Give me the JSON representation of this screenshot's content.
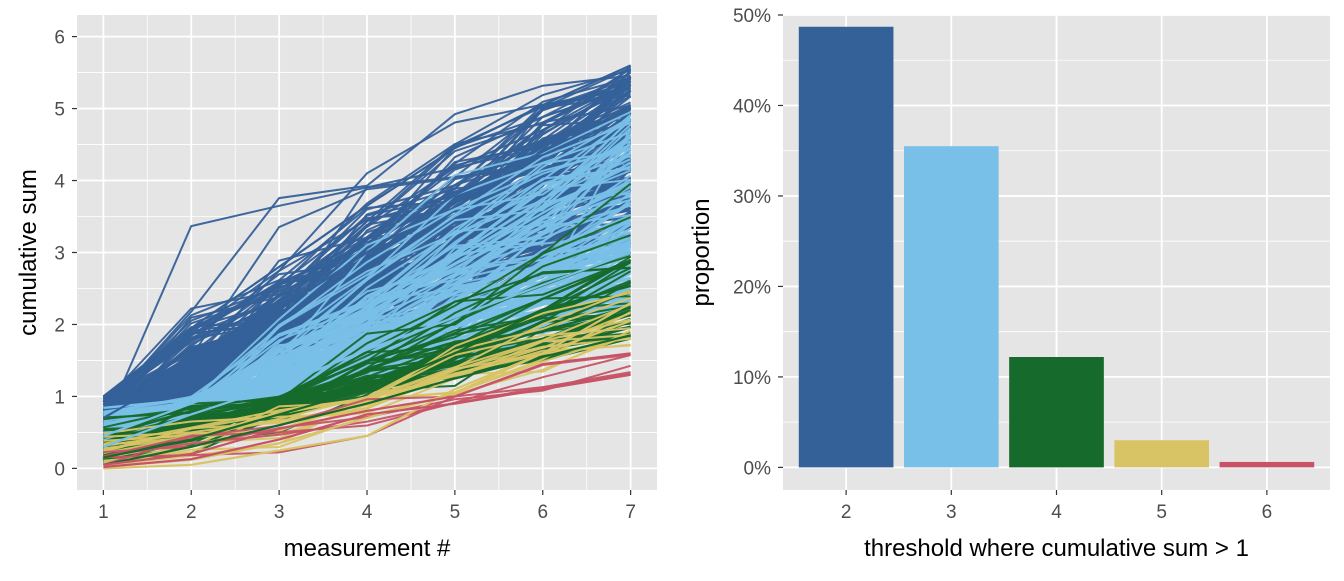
{
  "colors": {
    "panel_bg": "#e5e5e5",
    "grid": "#ffffff",
    "threshold_2": "#356199",
    "threshold_3": "#79c0e8",
    "threshold_4": "#166a2b",
    "threshold_5": "#d8c465",
    "threshold_6": "#c65466"
  },
  "chart_data": [
    {
      "type": "line",
      "xlabel": "measurement #",
      "ylabel": "cumulative sum",
      "x": [
        1,
        2,
        3,
        4,
        5,
        6,
        7
      ],
      "xlim": [
        0.7,
        7.3
      ],
      "ylim": [
        -0.3,
        6.3
      ],
      "x_ticks": [
        "1",
        "2",
        "3",
        "4",
        "5",
        "6",
        "7"
      ],
      "y_ticks": [
        "0",
        "1",
        "2",
        "3",
        "4",
        "5",
        "6"
      ],
      "grid": true,
      "legend": "none",
      "series_groups": [
        {
          "threshold": 2,
          "color": "#356199",
          "line_count": 200,
          "value_at_7_range": [
            3.0,
            5.6
          ]
        },
        {
          "threshold": 3,
          "color": "#79c0e8",
          "line_count": 150,
          "value_at_7_range": [
            2.2,
            5.0
          ]
        },
        {
          "threshold": 4,
          "color": "#166a2b",
          "line_count": 55,
          "value_at_7_range": [
            1.8,
            4.2
          ]
        },
        {
          "threshold": 5,
          "color": "#d8c465",
          "line_count": 16,
          "value_at_7_range": [
            1.7,
            2.6
          ]
        },
        {
          "threshold": 6,
          "color": "#c65466",
          "line_count": 5,
          "value_at_7_range": [
            1.3,
            1.6
          ]
        }
      ],
      "example_series": [
        {
          "threshold": 2,
          "values": [
            1.0,
            1.95,
            2.8,
            3.65,
            4.45,
            5.05,
            5.6
          ]
        },
        {
          "threshold": 2,
          "values": [
            0.7,
            1.4,
            2.2,
            3.0,
            3.8,
            4.4,
            5.0
          ]
        },
        {
          "threshold": 3,
          "values": [
            0.45,
            0.9,
            1.35,
            2.15,
            2.85,
            3.55,
            4.25
          ]
        },
        {
          "threshold": 3,
          "values": [
            0.3,
            0.75,
            1.15,
            1.65,
            2.1,
            2.55,
            3.0
          ]
        },
        {
          "threshold": 4,
          "values": [
            0.15,
            0.4,
            0.75,
            1.1,
            1.6,
            2.2,
            2.9
          ]
        },
        {
          "threshold": 4,
          "values": [
            0.05,
            0.3,
            0.6,
            0.9,
            1.25,
            1.55,
            1.85
          ]
        },
        {
          "threshold": 5,
          "values": [
            0.02,
            0.12,
            0.35,
            0.7,
            1.05,
            1.6,
            2.3
          ]
        },
        {
          "threshold": 5,
          "values": [
            0.0,
            0.05,
            0.25,
            0.45,
            1.1,
            1.6,
            2.05
          ]
        },
        {
          "threshold": 6,
          "values": [
            0.02,
            0.13,
            0.4,
            0.75,
            0.9,
            1.1,
            1.3
          ]
        },
        {
          "threshold": 6,
          "values": [
            0.05,
            0.2,
            0.55,
            0.8,
            1.0,
            1.45,
            1.6
          ]
        }
      ]
    },
    {
      "type": "bar",
      "xlabel": "threshold where cumulative sum > 1",
      "ylabel": "proportion",
      "categories": [
        "2",
        "3",
        "4",
        "5",
        "6"
      ],
      "values": [
        0.487,
        0.355,
        0.122,
        0.03,
        0.006
      ],
      "colors": [
        "#356199",
        "#79c0e8",
        "#166a2b",
        "#d8c465",
        "#c65466"
      ],
      "ylim": [
        -0.025,
        0.5
      ],
      "y_ticks": [
        "0%",
        "10%",
        "20%",
        "30%",
        "40%",
        "50%"
      ],
      "grid": true,
      "legend": "none"
    }
  ]
}
